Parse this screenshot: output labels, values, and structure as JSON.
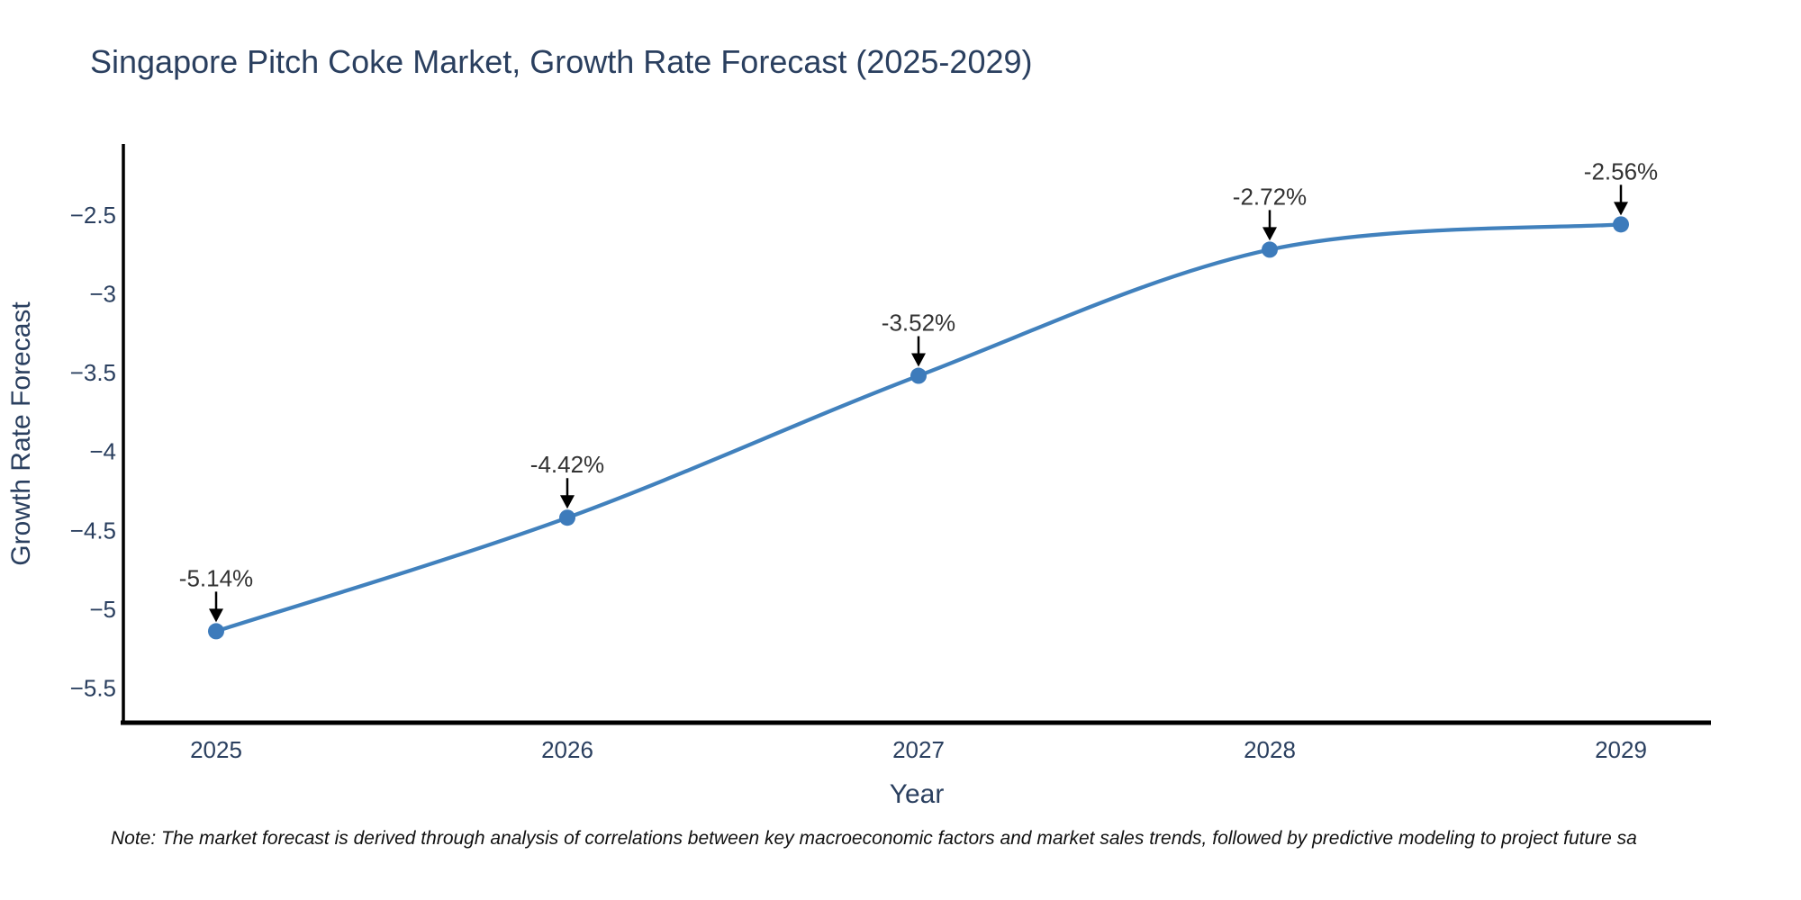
{
  "chart_data": {
    "type": "line",
    "title": "Singapore Pitch Coke Market, Growth Rate Forecast (2025-2029)",
    "xlabel": "Year",
    "ylabel": "Growth Rate Forecast",
    "categories": [
      "2025",
      "2026",
      "2027",
      "2028",
      "2029"
    ],
    "series": [
      {
        "name": "Growth Rate Forecast",
        "values": [
          -5.14,
          -4.42,
          -3.52,
          -2.72,
          -2.56
        ]
      }
    ],
    "point_labels": [
      "-5.14%",
      "-4.42%",
      "-3.52%",
      "-2.72%",
      "-2.56%"
    ],
    "curve": "spline",
    "markers": true,
    "grid": false,
    "legend": "none",
    "ylim": [
      -5.72,
      -2.05
    ],
    "yticks": [
      -2.5,
      -3,
      -3.5,
      -4,
      -4.5,
      -5,
      -5.5
    ],
    "ytick_labels": [
      "−2.5",
      "−3",
      "−3.5",
      "−4",
      "−4.5",
      "−5",
      "−5.5"
    ],
    "colors": {
      "line": "#4181bd",
      "marker": "#3d7bbb",
      "axis": "#000000",
      "tick_label": "#2a3f5f",
      "title": "#2a3f5f",
      "annotation_text": "#333333",
      "arrow": "#000000",
      "background": "#ffffff"
    }
  },
  "note": "Note: The market forecast is derived through analysis of correlations between key macroeconomic factors and market sales trends, followed by predictive modeling to project future sa"
}
